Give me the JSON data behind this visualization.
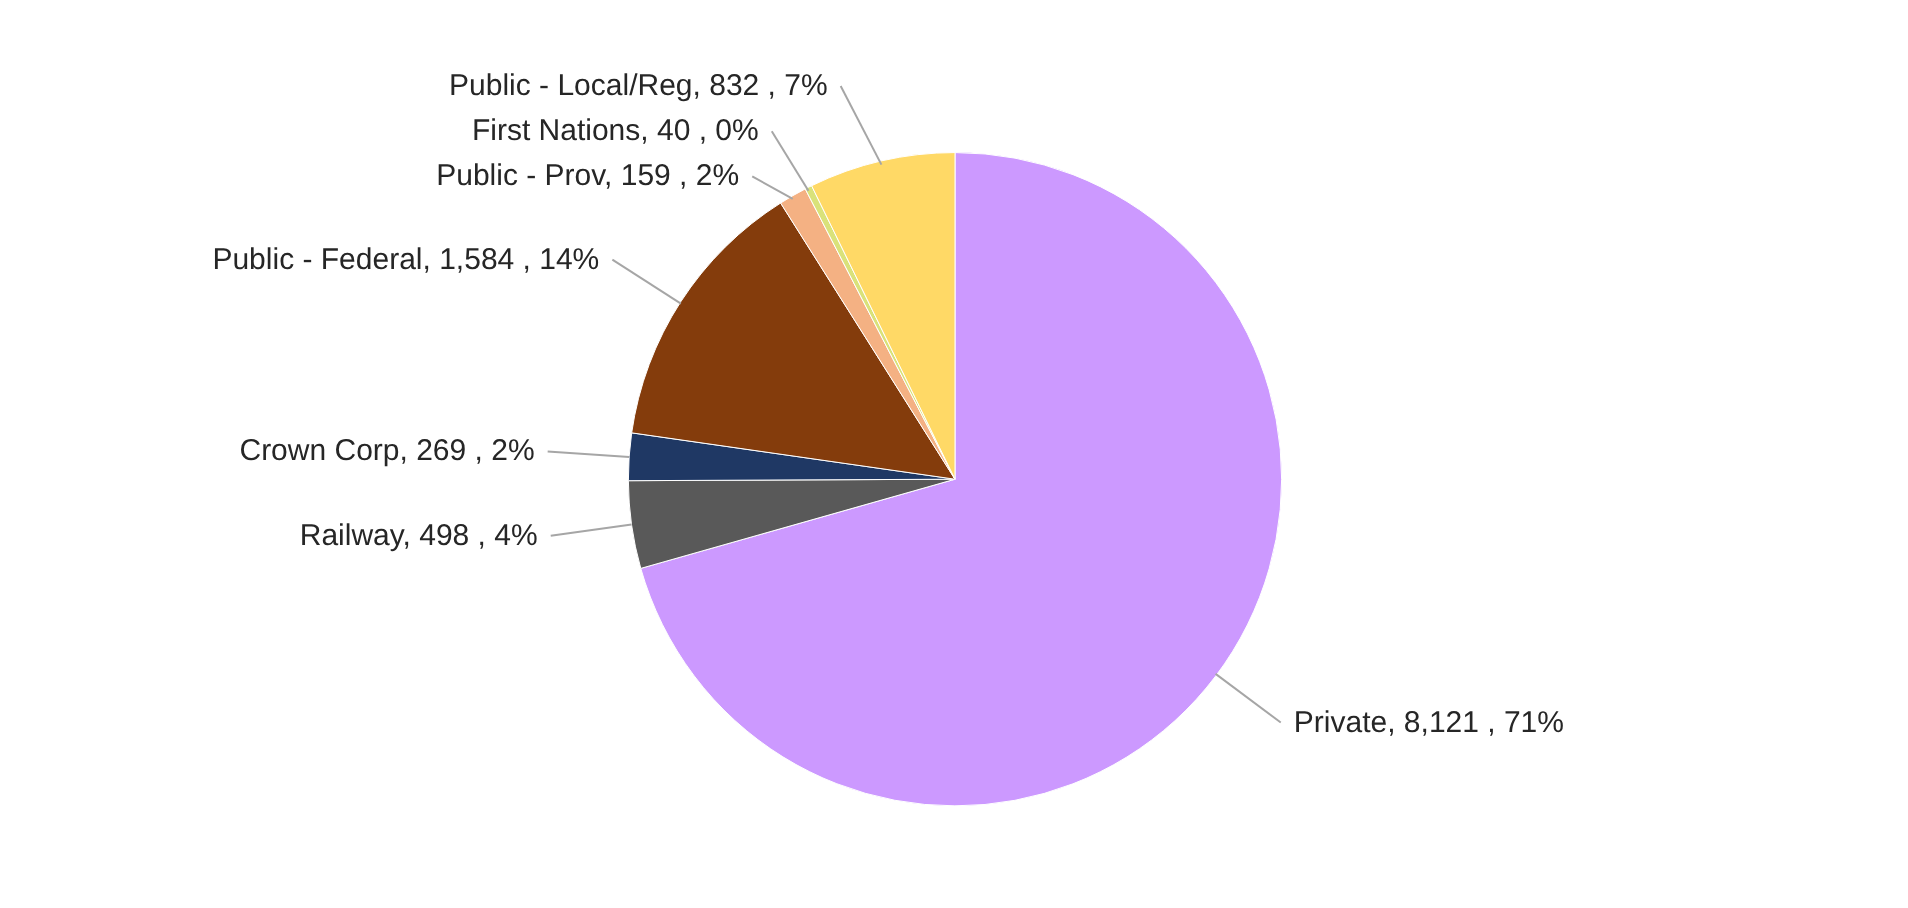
{
  "chart_data": {
    "type": "pie",
    "categories": [
      "Private",
      "Railway",
      "Crown Corp",
      "Public - Federal",
      "Public - Prov",
      "First Nations",
      "Public - Local/Reg"
    ],
    "values": [
      8121,
      498,
      269,
      1584,
      159,
      40,
      832
    ],
    "value_labels": [
      "8,121 , 71%",
      "498 , 4%",
      "269 , 2%",
      "1,584 , 14%",
      "159 , 2%",
      "40 , 0%",
      "832 , 7%"
    ],
    "colors": [
      "#cc99ff",
      "#595959",
      "#1f3864",
      "#843c0c",
      "#f4b183",
      "#d9e27a",
      "#ffd966"
    ]
  }
}
